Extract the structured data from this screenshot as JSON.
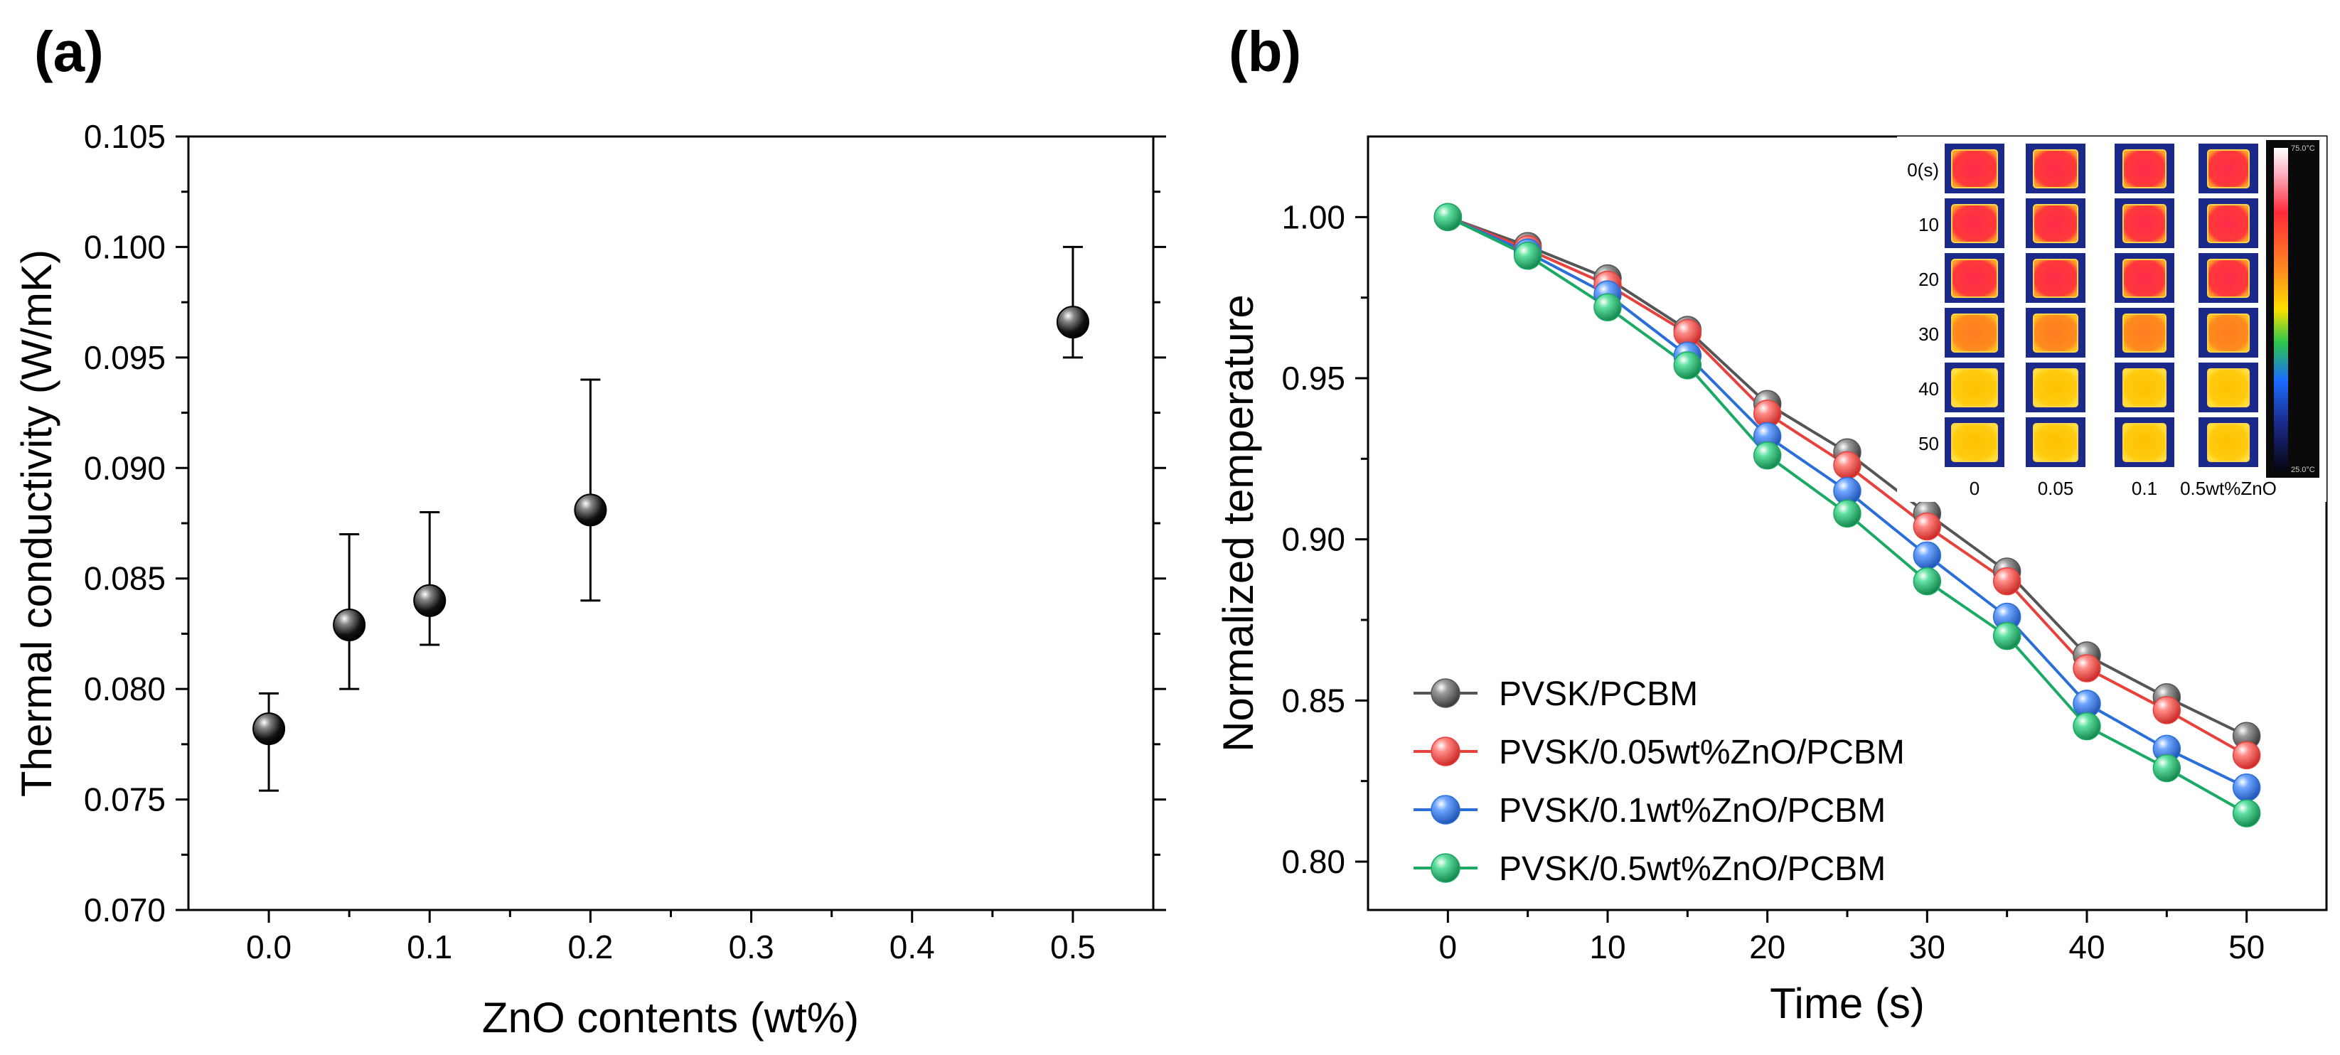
{
  "figure": {
    "panel_a_label": "(a)",
    "panel_b_label": "(b)"
  },
  "chart_data": [
    {
      "type": "scatter",
      "panel": "(a)",
      "title": "",
      "xlabel": "ZnO contents (wt%)",
      "ylabel": "Thermal conductivity (W/mK)",
      "xlim": [
        -0.05,
        0.55
      ],
      "ylim": [
        0.07,
        0.105
      ],
      "xticks": [
        0.0,
        0.1,
        0.2,
        0.3,
        0.4,
        0.5
      ],
      "xtick_labels": [
        "0.0",
        "0.1",
        "0.2",
        "0.3",
        "0.4",
        "0.5"
      ],
      "yticks": [
        0.07,
        0.075,
        0.08,
        0.085,
        0.09,
        0.095,
        0.1,
        0.105
      ],
      "ytick_labels": [
        "0.070",
        "0.075",
        "0.080",
        "0.085",
        "0.090",
        "0.095",
        "0.100",
        "0.105"
      ],
      "points": [
        {
          "x": 0.0,
          "y": 0.0782,
          "err_low": 0.0754,
          "err_high": 0.0798
        },
        {
          "x": 0.05,
          "y": 0.0829,
          "err_low": 0.08,
          "err_high": 0.087
        },
        {
          "x": 0.1,
          "y": 0.084,
          "err_low": 0.082,
          "err_high": 0.088
        },
        {
          "x": 0.2,
          "y": 0.0881,
          "err_low": 0.084,
          "err_high": 0.094
        },
        {
          "x": 0.5,
          "y": 0.0966,
          "err_low": 0.095,
          "err_high": 0.1
        }
      ],
      "marker_color": "#000000"
    },
    {
      "type": "line",
      "panel": "(b)",
      "title": "",
      "xlabel": "Time (s)",
      "ylabel": "Normalized temperature",
      "xlim": [
        -5,
        55
      ],
      "ylim": [
        0.785,
        1.025
      ],
      "xticks": [
        0,
        10,
        20,
        30,
        40,
        50
      ],
      "xtick_labels": [
        "0",
        "10",
        "20",
        "30",
        "40",
        "50"
      ],
      "yticks": [
        0.8,
        0.85,
        0.9,
        0.95,
        1.0
      ],
      "ytick_labels": [
        "0.80",
        "0.85",
        "0.90",
        "0.95",
        "1.00"
      ],
      "x": [
        0,
        5,
        10,
        15,
        20,
        25,
        30,
        35,
        40,
        45,
        50
      ],
      "series": [
        {
          "name": "PVSK/PCBM",
          "color": "#555555",
          "values": [
            1.0,
            0.991,
            0.981,
            0.965,
            0.942,
            0.927,
            0.908,
            0.89,
            0.864,
            0.851,
            0.839
          ]
        },
        {
          "name": "PVSK/0.05wt%ZnO/PCBM",
          "color": "#e8413c",
          "values": [
            1.0,
            0.99,
            0.979,
            0.964,
            0.939,
            0.923,
            0.904,
            0.887,
            0.86,
            0.847,
            0.833
          ]
        },
        {
          "name": "PVSK/0.1wt%ZnO/PCBM",
          "color": "#2a6fd9",
          "values": [
            1.0,
            0.989,
            0.976,
            0.957,
            0.932,
            0.915,
            0.895,
            0.876,
            0.849,
            0.835,
            0.823
          ]
        },
        {
          "name": "PVSK/0.5wt%ZnO/PCBM",
          "color": "#1aaa63",
          "values": [
            1.0,
            0.988,
            0.972,
            0.954,
            0.926,
            0.908,
            0.887,
            0.87,
            0.842,
            0.829,
            0.815
          ]
        }
      ],
      "legend_location": "lower-left",
      "inset": {
        "row_labels": [
          "0(s)",
          "10",
          "20",
          "30",
          "40",
          "50"
        ],
        "col_labels": [
          "0",
          "0.05",
          "0.1",
          "0.5wt%ZnO"
        ],
        "colorbar_max": "75.0°C",
        "colorbar_min": "25.0°C"
      }
    }
  ]
}
